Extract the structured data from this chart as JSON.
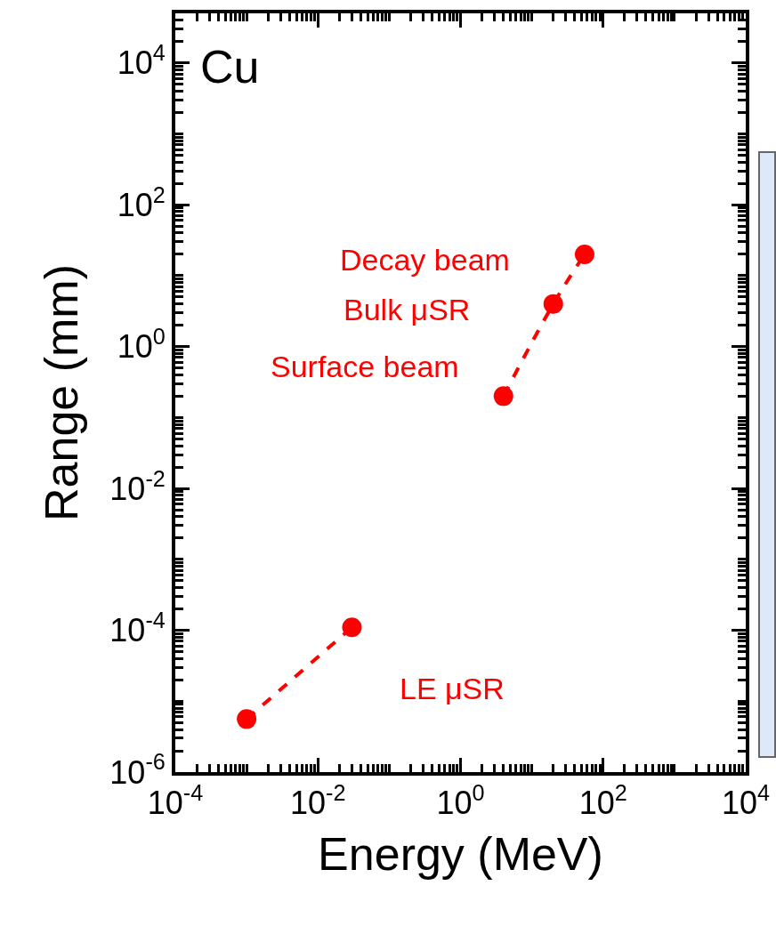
{
  "chart_data": {
    "type": "line",
    "xlabel": "Energy (MeV)",
    "ylabel": "Range (mm)",
    "log": "xy",
    "grid": false,
    "marker": "circle",
    "line_style": "dashed",
    "xlim": [
      0.0001,
      10000
    ],
    "ylim": [
      1e-06,
      50000
    ],
    "xticks": [
      {
        "value": 0.0001,
        "label": "10$^{-4}$"
      },
      {
        "value": 0.01,
        "label": "10$^{-2}$"
      },
      {
        "value": 1,
        "label": "10$^{0}$"
      },
      {
        "value": 100,
        "label": "10$^{2}$"
      },
      {
        "value": 10000,
        "label": "10$^{4}$"
      }
    ],
    "yticks": [
      {
        "value": 1e-06,
        "label": "10$^{-6}$"
      },
      {
        "value": 0.0001,
        "label": "10$^{-4}$"
      },
      {
        "value": 0.01,
        "label": "10$^{-2}$"
      },
      {
        "value": 1,
        "label": "10$^{0}$"
      },
      {
        "value": 100,
        "label": "10$^{2}$"
      },
      {
        "value": 10000,
        "label": "10$^{4}$"
      }
    ],
    "series": [
      {
        "color": "#ff0000",
        "x": [
          0.001,
          0.03
        ],
        "values": [
          5.6e-06,
          0.00011
        ]
      },
      {
        "color": "#ff0000",
        "x": [
          4,
          20,
          55
        ],
        "values": [
          0.2,
          4,
          20
        ]
      }
    ],
    "annotations": [
      "Cu",
      "Decay beam",
      "Bulk μSR",
      "Surface beam",
      "LE μSR"
    ]
  }
}
